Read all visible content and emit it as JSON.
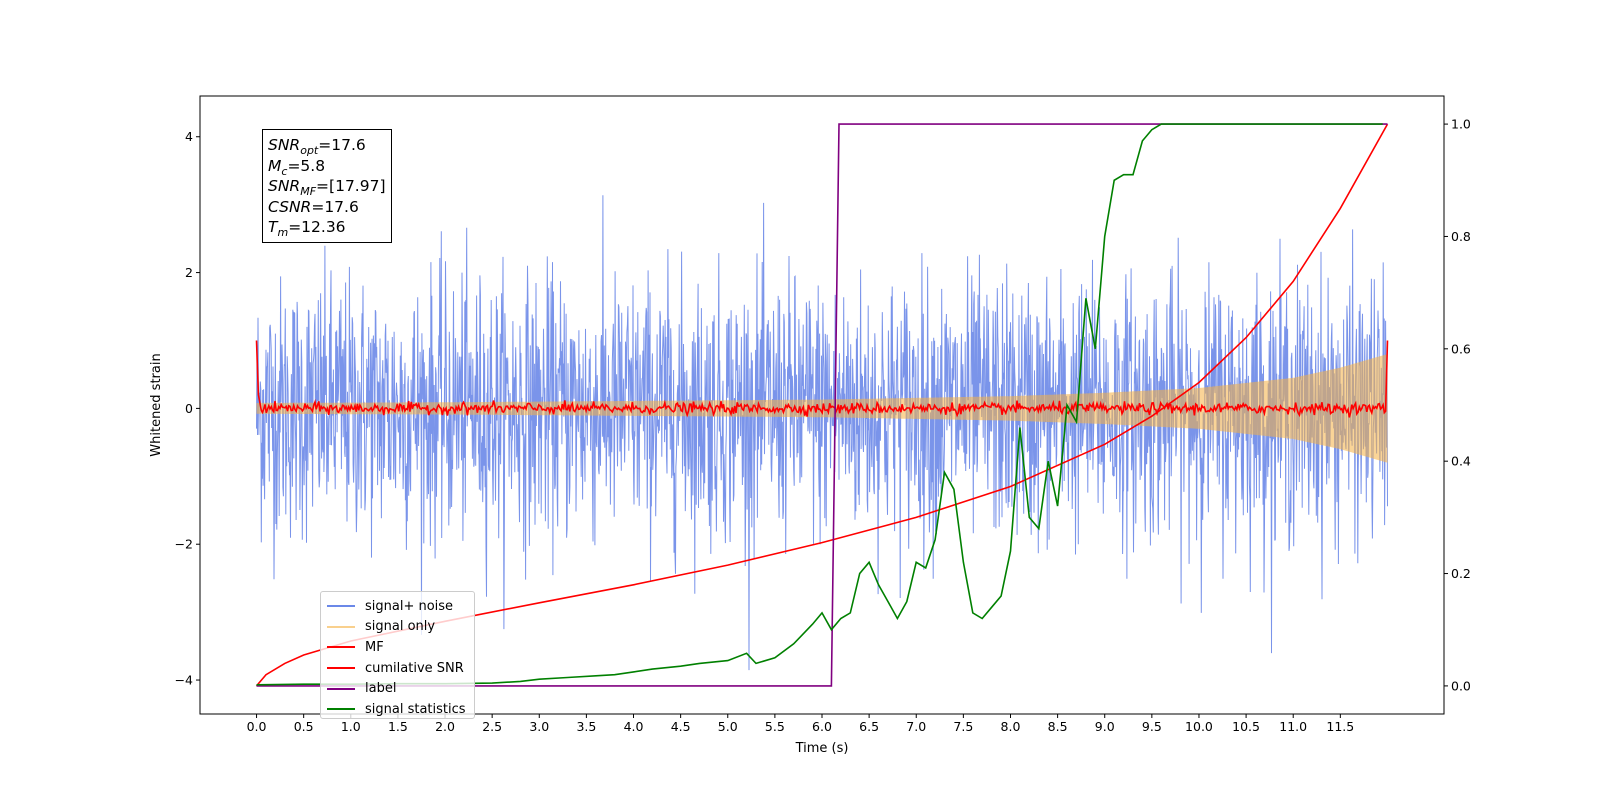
{
  "chart_data": {
    "type": "line",
    "title": "",
    "xlabel": "Time (s)",
    "ylabel": "Whitened strain",
    "y2label": "",
    "xlim": [
      -0.6,
      12.6
    ],
    "ylim": [
      -4.5,
      4.6
    ],
    "y2lim": [
      -0.05,
      1.05
    ],
    "x_ticks": [
      0.0,
      0.5,
      1.0,
      1.5,
      2.0,
      2.5,
      3.0,
      3.5,
      4.0,
      4.5,
      5.0,
      5.5,
      6.0,
      6.5,
      7.0,
      7.5,
      8.0,
      8.5,
      9.0,
      9.5,
      10.0,
      10.5,
      11.0,
      11.5
    ],
    "x_tick_labels": [
      "0.0",
      "0.5",
      "1.0",
      "1.5",
      "2.0",
      "2.5",
      "3.0",
      "3.5",
      "4.0",
      "4.5",
      "5.0",
      "5.5",
      "6.0",
      "6.5",
      "7.0",
      "7.5",
      "8.0",
      "8.5",
      "9.0",
      "9.5",
      "10.0",
      "10.5",
      "11.0",
      "11.5"
    ],
    "y_ticks": [
      -4,
      -2,
      0,
      2,
      4
    ],
    "y_tick_labels": [
      "−4",
      "−2",
      "0",
      "2",
      "4"
    ],
    "y2_ticks": [
      0.0,
      0.2,
      0.4,
      0.6,
      0.8,
      1.0
    ],
    "y2_tick_labels": [
      "0.0",
      "0.2",
      "0.4",
      "0.6",
      "0.8",
      "1.0"
    ],
    "grid": false,
    "legend_position": "lower-left",
    "series": [
      {
        "name": "signal+ noise",
        "color": "#6b88e8",
        "axis": "left",
        "kind": "noise",
        "x_range": [
          0.0,
          12.0
        ],
        "typical_amplitude": 2.3,
        "peak_amplitude": 4.1
      },
      {
        "name": "signal only",
        "color": "#f5b041",
        "axis": "left",
        "kind": "chirp",
        "x_range": [
          0.0,
          12.0
        ],
        "envelope_x": [
          0.0,
          2.0,
          4.0,
          6.0,
          8.0,
          9.0,
          10.0,
          11.0,
          11.5,
          12.0
        ],
        "envelope_y": [
          0.08,
          0.09,
          0.11,
          0.13,
          0.18,
          0.23,
          0.3,
          0.45,
          0.6,
          0.8
        ]
      },
      {
        "name": "MF",
        "color": "#ff0000",
        "axis": "left",
        "kind": "matched-filter",
        "x": [
          0.0,
          0.02,
          0.05,
          12.0
        ],
        "y": [
          1.0,
          0.2,
          0.0,
          0.0
        ],
        "end_spike": 1.0,
        "ripple_amplitude": 0.08
      },
      {
        "name": "cumilative SNR",
        "color": "#ff0000",
        "axis": "right",
        "x": [
          0.0,
          0.1,
          0.3,
          0.5,
          1.0,
          2.0,
          3.0,
          4.0,
          5.0,
          6.0,
          7.0,
          8.0,
          9.0,
          9.5,
          10.0,
          10.5,
          11.0,
          11.5,
          12.0
        ],
        "y": [
          0.0,
          0.02,
          0.04,
          0.055,
          0.08,
          0.115,
          0.148,
          0.18,
          0.215,
          0.255,
          0.3,
          0.355,
          0.43,
          0.48,
          0.54,
          0.62,
          0.72,
          0.85,
          1.0
        ]
      },
      {
        "name": "label",
        "color": "#800080",
        "axis": "right",
        "x": [
          0.0,
          6.1,
          6.18,
          12.0
        ],
        "y": [
          0.0,
          0.0,
          1.0,
          1.0
        ]
      },
      {
        "name": "signal statistics",
        "color": "#008000",
        "axis": "right",
        "x": [
          0.0,
          0.5,
          1.0,
          1.5,
          2.0,
          2.5,
          2.8,
          3.0,
          3.3,
          3.6,
          3.8,
          4.0,
          4.2,
          4.5,
          4.7,
          5.0,
          5.2,
          5.3,
          5.5,
          5.7,
          5.9,
          6.0,
          6.1,
          6.2,
          6.3,
          6.4,
          6.5,
          6.6,
          6.7,
          6.8,
          6.9,
          7.0,
          7.1,
          7.2,
          7.3,
          7.4,
          7.5,
          7.6,
          7.7,
          7.8,
          7.9,
          8.0,
          8.1,
          8.2,
          8.3,
          8.4,
          8.5,
          8.6,
          8.7,
          8.8,
          8.9,
          9.0,
          9.1,
          9.2,
          9.3,
          9.4,
          9.5,
          9.6,
          9.8,
          10.0,
          10.5,
          11.0,
          11.5,
          11.95
        ],
        "y": [
          0.002,
          0.003,
          0.003,
          0.004,
          0.004,
          0.005,
          0.008,
          0.012,
          0.015,
          0.018,
          0.02,
          0.025,
          0.03,
          0.035,
          0.04,
          0.045,
          0.058,
          0.04,
          0.05,
          0.075,
          0.11,
          0.13,
          0.1,
          0.12,
          0.13,
          0.2,
          0.22,
          0.18,
          0.15,
          0.12,
          0.15,
          0.22,
          0.21,
          0.26,
          0.38,
          0.35,
          0.22,
          0.13,
          0.12,
          0.14,
          0.16,
          0.24,
          0.46,
          0.3,
          0.28,
          0.4,
          0.32,
          0.5,
          0.47,
          0.69,
          0.6,
          0.8,
          0.9,
          0.91,
          0.91,
          0.97,
          0.99,
          1.0,
          1.0,
          1.0,
          1.0,
          1.0,
          1.0,
          1.0
        ]
      }
    ]
  },
  "annotation": {
    "snr_opt_var": "SNR",
    "snr_opt_sub": "opt",
    "snr_opt_value": "=17.6",
    "mc_var": "M",
    "mc_sub": "c",
    "mc_value": "=5.8",
    "snr_mf_var": "SNR",
    "snr_mf_sub": "MF",
    "snr_mf_value": "=[17.97]",
    "csnr_var": "CSNR",
    "csnr_value": "=17.6",
    "tm_var": "T",
    "tm_sub": "m",
    "tm_value": "=12.36"
  }
}
